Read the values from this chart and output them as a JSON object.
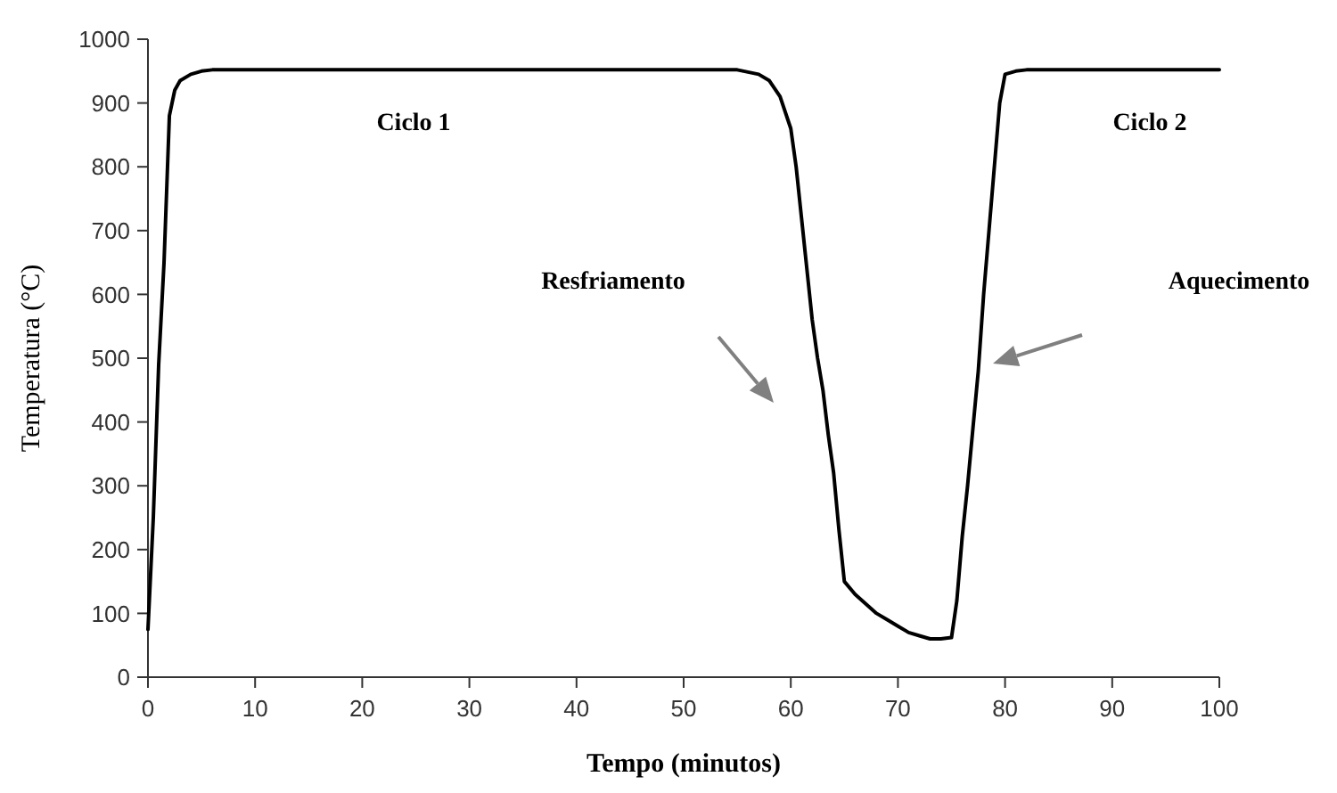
{
  "chart_data": {
    "type": "line",
    "xlabel": "Tempo (minutos)",
    "ylabel": "Temperatura (°C)",
    "xlim": [
      0,
      100
    ],
    "ylim": [
      0,
      1000
    ],
    "xticks": [
      0,
      10,
      20,
      30,
      40,
      50,
      60,
      70,
      80,
      90,
      100
    ],
    "yticks": [
      0,
      100,
      200,
      300,
      400,
      500,
      600,
      700,
      800,
      900,
      1000
    ],
    "grid": false,
    "marker": "none",
    "line_style": "solid",
    "series": [
      {
        "color": "#000000",
        "x": [
          0,
          0.5,
          1,
          1.5,
          2,
          2.5,
          3,
          4,
          5,
          6,
          55,
          57,
          58,
          59,
          60,
          60.5,
          61,
          61.5,
          62,
          62.5,
          63,
          63.5,
          64,
          64.5,
          65,
          66,
          67,
          68,
          69,
          70,
          71,
          72,
          73,
          74,
          75,
          75.5,
          76,
          76.5,
          77,
          77.5,
          78,
          78.5,
          79,
          79.5,
          80,
          81,
          82,
          90,
          100
        ],
        "values": [
          75,
          250,
          490,
          650,
          880,
          920,
          935,
          945,
          950,
          952,
          952,
          945,
          935,
          910,
          860,
          800,
          720,
          640,
          560,
          500,
          450,
          380,
          320,
          230,
          150,
          130,
          115,
          100,
          90,
          80,
          70,
          65,
          60,
          60,
          62,
          120,
          220,
          300,
          390,
          480,
          600,
          700,
          800,
          900,
          945,
          950,
          952,
          952,
          952
        ]
      }
    ],
    "annotations": [
      "Ciclo 1",
      "Ciclo 2",
      "Resfriamento",
      "Aquecimento"
    ]
  }
}
